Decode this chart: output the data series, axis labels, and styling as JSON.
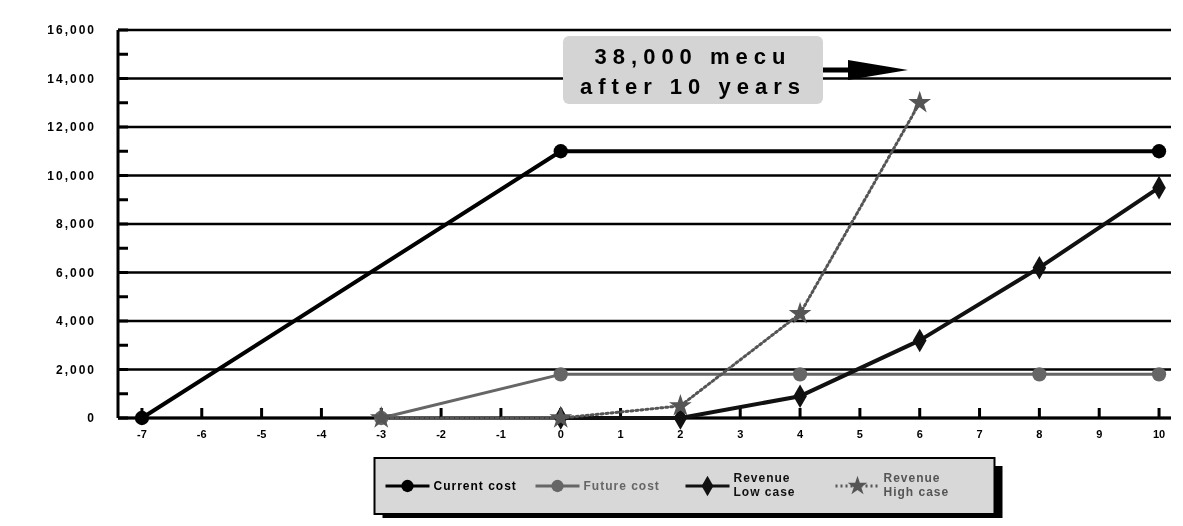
{
  "chart_data": {
    "type": "line",
    "xlim": [
      -7.4,
      10.2
    ],
    "xticks": [
      -7,
      -6,
      -5,
      -4,
      -3,
      -2,
      -1,
      0,
      1,
      2,
      3,
      4,
      5,
      6,
      7,
      8,
      9,
      10
    ],
    "ylim": [
      0,
      16000
    ],
    "yticks": [
      {
        "value": 0,
        "label": "0"
      },
      {
        "value": 1000,
        "label": null
      },
      {
        "value": 2000,
        "label": "2,000"
      },
      {
        "value": 3000,
        "label": null
      },
      {
        "value": 4000,
        "label": "4,000"
      },
      {
        "value": 5000,
        "label": null
      },
      {
        "value": 6000,
        "label": "6,000"
      },
      {
        "value": 7000,
        "label": null
      },
      {
        "value": 8000,
        "label": "8,000"
      },
      {
        "value": 9000,
        "label": null
      },
      {
        "value": 10000,
        "label": "10,000"
      },
      {
        "value": 11000,
        "label": null
      },
      {
        "value": 12000,
        "label": "12,000"
      },
      {
        "value": 13000,
        "label": null
      },
      {
        "value": 14000,
        "label": "14,000"
      },
      {
        "value": 15000,
        "label": null
      },
      {
        "value": 16000,
        "label": "16,000"
      }
    ],
    "grid": "y",
    "legend": "bottom",
    "annotations": [
      "38,000 mecu after 10 years"
    ],
    "series": [
      {
        "name": "Current cost",
        "color": "#000000",
        "marker": "circle",
        "line_style": "solid",
        "x": [
          -7,
          0,
          10
        ],
        "values": [
          0,
          11000,
          11000
        ]
      },
      {
        "name": "Future cost",
        "color": "#666666",
        "marker": "circle",
        "line_style": "solid",
        "x": [
          -3,
          0,
          4,
          8,
          10
        ],
        "values": [
          0,
          1800,
          1800,
          1800,
          1800
        ]
      },
      {
        "name": "Revenue Low case",
        "color": "#111111",
        "marker": "diamond",
        "line_style": "solid",
        "x": [
          0,
          2,
          4,
          6,
          8,
          10
        ],
        "values": [
          0,
          0,
          900,
          3200,
          6200,
          9500
        ]
      },
      {
        "name": "Revenue High case",
        "color": "#555555",
        "marker": "star",
        "line_style": "dotted",
        "x": [
          -3,
          0,
          2,
          4,
          6
        ],
        "values": [
          0,
          0,
          500,
          4300,
          13000
        ]
      }
    ]
  }
}
